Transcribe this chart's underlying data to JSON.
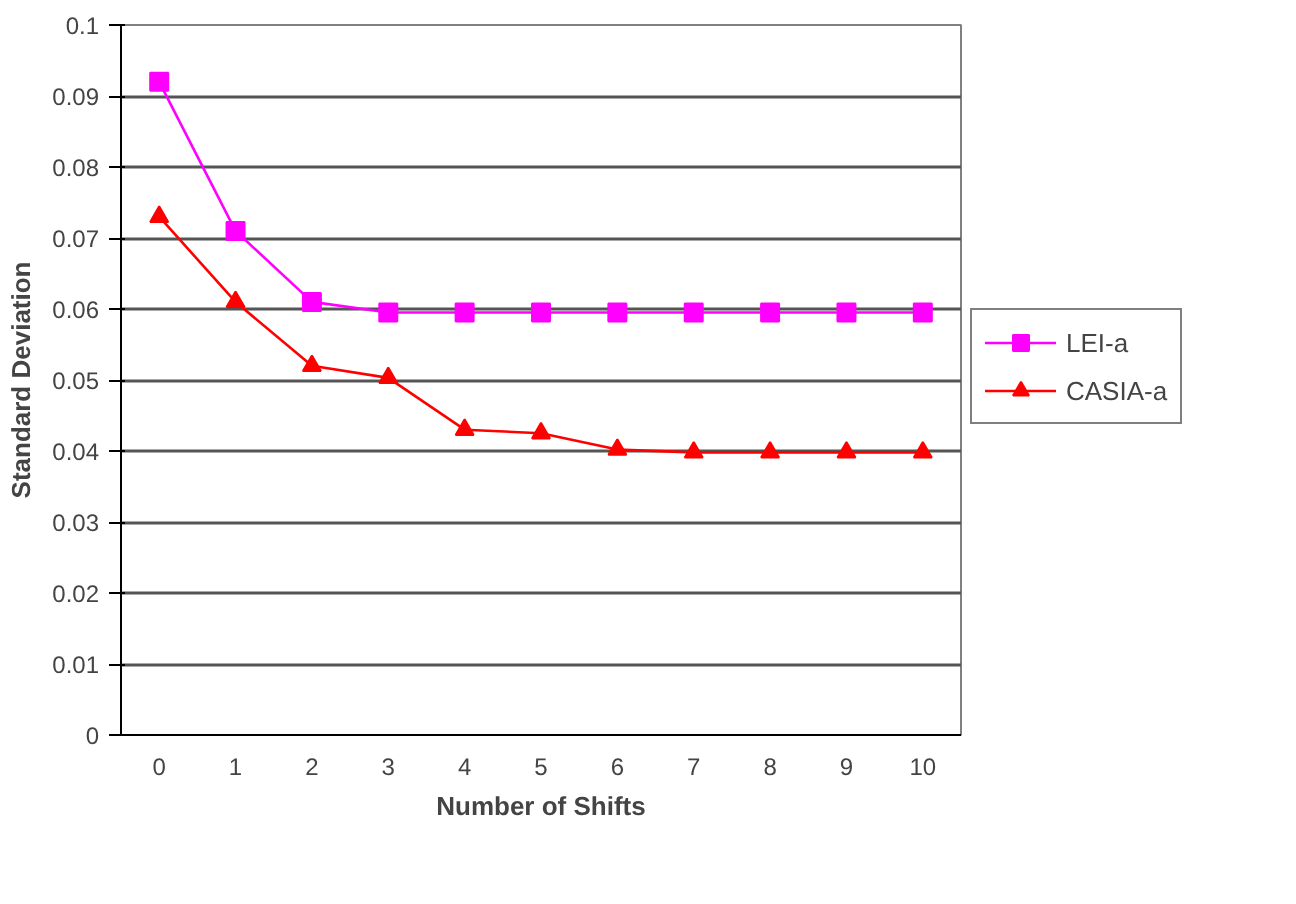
{
  "chart_data": {
    "type": "line",
    "xlabel": "Number of Shifts",
    "ylabel": "Standard Deviation",
    "categories": [
      "0",
      "1",
      "2",
      "3",
      "4",
      "5",
      "6",
      "7",
      "8",
      "9",
      "10"
    ],
    "series": [
      {
        "name": "LEI-a",
        "color": "#ff00ff",
        "marker": "square",
        "values": [
          0.092,
          0.071,
          0.061,
          0.0595,
          0.0595,
          0.0595,
          0.0595,
          0.0595,
          0.0595,
          0.0595,
          0.0595
        ]
      },
      {
        "name": "CASIA-a",
        "color": "#ff0000",
        "marker": "triangle",
        "values": [
          0.073,
          0.061,
          0.052,
          0.0503,
          0.043,
          0.0425,
          0.0402,
          0.0398,
          0.0398,
          0.0398,
          0.0398
        ]
      }
    ],
    "ylim": [
      0,
      0.1
    ],
    "yticks": [
      0,
      0.01,
      0.02,
      0.03,
      0.04,
      0.05,
      0.06,
      0.07,
      0.08,
      0.09,
      0.1
    ],
    "grid": "y",
    "legend": "right",
    "line_style": "solid"
  }
}
